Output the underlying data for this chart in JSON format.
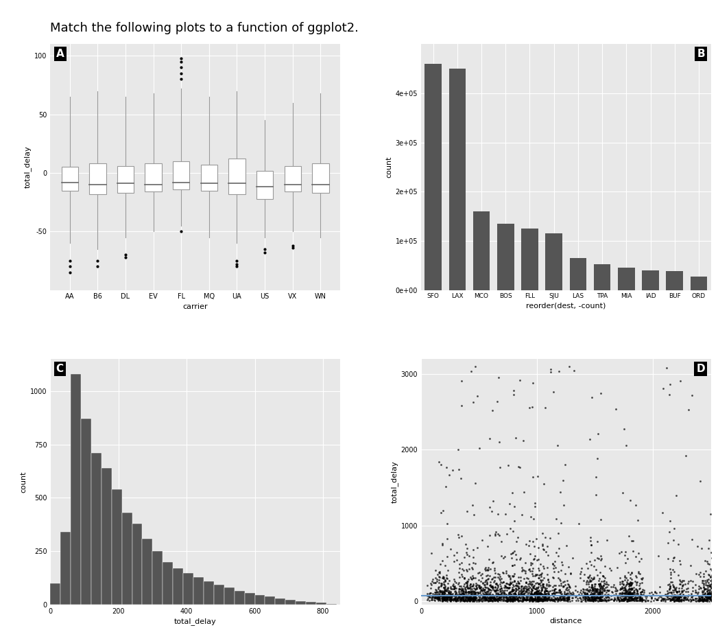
{
  "title": "Match the following plots to a function of ggplot2.",
  "title_fontsize": 13,
  "panel_bg": "#e8e8e8",
  "bar_color": "#555555",
  "panel_A": {
    "label": "A",
    "carriers": [
      "AA",
      "B6",
      "DL",
      "EV",
      "FL",
      "MQ",
      "UA",
      "US",
      "VX",
      "WN"
    ],
    "ylabel": "total_delay",
    "xlabel": "carrier",
    "ylim": [
      -100,
      110
    ],
    "yticks": [
      -50,
      0,
      50,
      100
    ],
    "boxes": [
      {
        "q1": -15,
        "median": -8,
        "q3": 5,
        "whislo": -60,
        "whishi": 65,
        "fliers_low": [
          -75,
          -80,
          -85
        ],
        "fliers_high": []
      },
      {
        "q1": -18,
        "median": -10,
        "q3": 8,
        "whislo": -65,
        "whishi": 70,
        "fliers_low": [
          -75,
          -80
        ],
        "fliers_high": []
      },
      {
        "q1": -17,
        "median": -9,
        "q3": 6,
        "whislo": -55,
        "whishi": 65,
        "fliers_low": [
          -70,
          -72
        ],
        "fliers_high": []
      },
      {
        "q1": -16,
        "median": -10,
        "q3": 8,
        "whislo": -50,
        "whishi": 68,
        "fliers_low": [],
        "fliers_high": []
      },
      {
        "q1": -14,
        "median": -8,
        "q3": 10,
        "whislo": -45,
        "whishi": 72,
        "fliers_low": [
          -50
        ],
        "fliers_high": [
          80,
          85,
          90,
          95,
          98
        ]
      },
      {
        "q1": -15,
        "median": -9,
        "q3": 7,
        "whislo": -55,
        "whishi": 65,
        "fliers_low": [],
        "fliers_high": []
      },
      {
        "q1": -18,
        "median": -9,
        "q3": 12,
        "whislo": -60,
        "whishi": 70,
        "fliers_low": [
          -75,
          -78,
          -80
        ],
        "fliers_high": []
      },
      {
        "q1": -22,
        "median": -12,
        "q3": 2,
        "whislo": -55,
        "whishi": 45,
        "fliers_low": [
          -65,
          -68
        ],
        "fliers_high": []
      },
      {
        "q1": -16,
        "median": -10,
        "q3": 6,
        "whislo": -50,
        "whishi": 60,
        "fliers_low": [
          -62,
          -64
        ],
        "fliers_high": []
      },
      {
        "q1": -17,
        "median": -10,
        "q3": 8,
        "whislo": -55,
        "whishi": 68,
        "fliers_low": [],
        "fliers_high": []
      }
    ]
  },
  "panel_B": {
    "label": "B",
    "categories": [
      "SFO",
      "LAX",
      "MCO",
      "BOS",
      "FLL",
      "SJU",
      "LAS",
      "TPA",
      "MIA",
      "IAD",
      "BUF",
      "ORD"
    ],
    "values": [
      460000,
      450000,
      160000,
      135000,
      125000,
      115000,
      65000,
      52000,
      46000,
      40000,
      38000,
      28000
    ],
    "ylabel": "count",
    "xlabel": "reorder(dest, -count)",
    "ylim": [
      0,
      500000
    ],
    "yticks": [
      0,
      100000,
      200000,
      300000,
      400000
    ],
    "ytick_labels": [
      "0e+00",
      "1e+05",
      "2e+05",
      "3e+05",
      "4e+05"
    ]
  },
  "panel_C": {
    "label": "C",
    "ylabel": "count",
    "xlabel": "total_delay",
    "xlim": [
      0,
      850
    ],
    "ylim": [
      0,
      1150
    ],
    "yticks": [
      0,
      250,
      500,
      750,
      1000
    ],
    "xticks": [
      0,
      200,
      400,
      600,
      800
    ],
    "hist_bins": [
      0,
      30,
      60,
      90,
      120,
      150,
      180,
      210,
      240,
      270,
      300,
      330,
      360,
      390,
      420,
      450,
      480,
      510,
      540,
      570,
      600,
      630,
      660,
      690,
      720,
      750,
      780,
      810,
      840
    ],
    "hist_values": [
      100,
      340,
      1080,
      870,
      710,
      640,
      540,
      430,
      380,
      310,
      250,
      200,
      170,
      150,
      130,
      110,
      95,
      80,
      65,
      55,
      45,
      38,
      30,
      24,
      18,
      14,
      10,
      5
    ]
  },
  "panel_D": {
    "label": "D",
    "ylabel": "total_delay",
    "xlabel": "distance",
    "xlim": [
      0,
      2500
    ],
    "ylim": [
      -50,
      3200
    ],
    "yticks": [
      0,
      1000,
      2000,
      3000
    ],
    "xticks": [
      0,
      1000,
      2000
    ],
    "hline_color": "#6699cc"
  }
}
